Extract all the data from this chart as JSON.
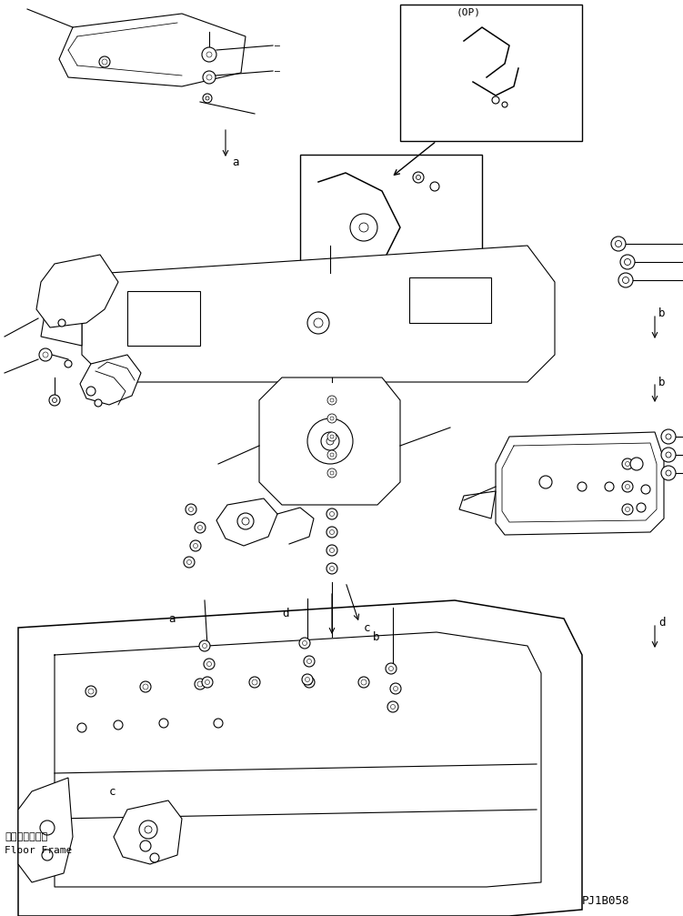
{
  "background_color": "#ffffff",
  "line_color": "#000000",
  "text_color": "#000000",
  "page_code": "PJ1B058",
  "label_op": "(OP)",
  "label_floor_frame_jp": "フロアフレーム",
  "label_floor_frame_en": "Floor Frame",
  "labels": [
    "a",
    "b",
    "c",
    "d"
  ],
  "figsize": [
    7.51,
    10.07
  ],
  "dpi": 100
}
